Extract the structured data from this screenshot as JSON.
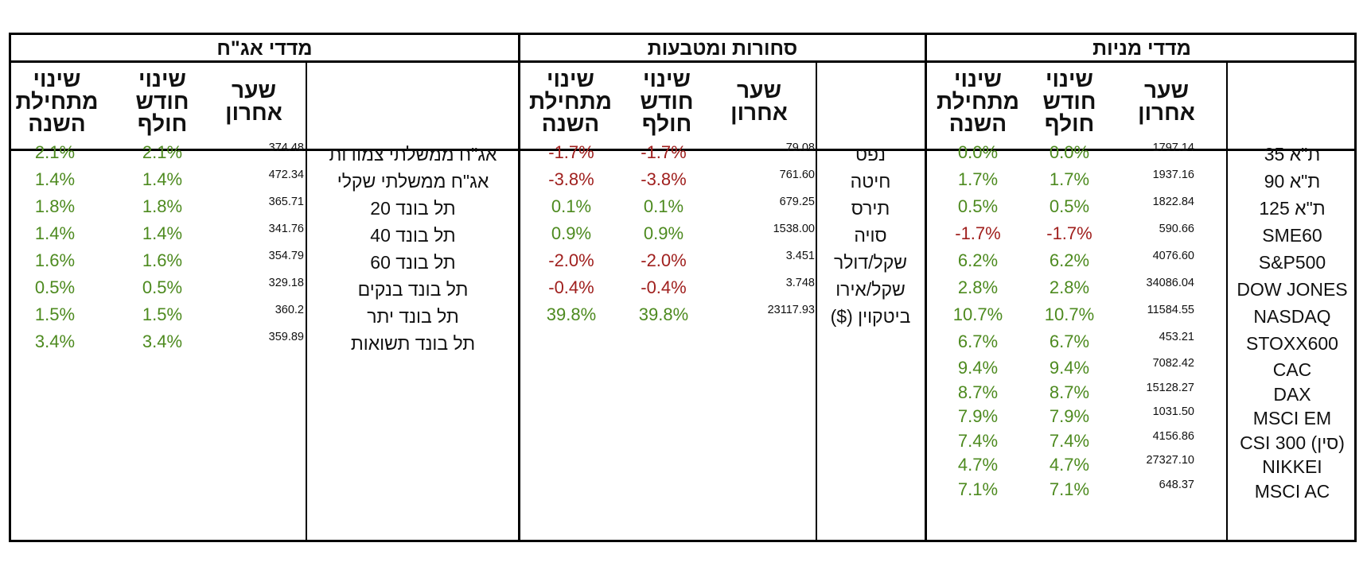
{
  "colors": {
    "positive": "#4d8a1f",
    "negative": "#a0201e"
  },
  "sections": {
    "stocks": {
      "title": "מדדי מניות"
    },
    "commodities": {
      "title": "סחורות ומטבעות"
    },
    "bonds": {
      "title": "מדדי אג\"ח"
    }
  },
  "headers": {
    "last": "שער אחרון",
    "month": "שינוי חודש חולף",
    "ytd": "שינוי מתחילת השנה"
  },
  "stocks": [
    {
      "name": "ת\"א 35",
      "last": "1797.14",
      "month": "0.0%",
      "ytd": "0.0%",
      "sign": "pos"
    },
    {
      "name": "ת\"א 90",
      "last": "1937.16",
      "month": "1.7%",
      "ytd": "1.7%",
      "sign": "pos"
    },
    {
      "name": "ת\"א 125",
      "last": "1822.84",
      "month": "0.5%",
      "ytd": "0.5%",
      "sign": "pos"
    },
    {
      "name": "SME60",
      "last": "590.66",
      "month": "-1.7%",
      "ytd": "-1.7%",
      "sign": "neg"
    },
    {
      "name": "S&P500",
      "last": "4076.60",
      "month": "6.2%",
      "ytd": "6.2%",
      "sign": "pos"
    },
    {
      "name": "DOW JONES",
      "last": "34086.04",
      "month": "2.8%",
      "ytd": "2.8%",
      "sign": "pos"
    },
    {
      "name": "NASDAQ",
      "last": "11584.55",
      "month": "10.7%",
      "ytd": "10.7%",
      "sign": "pos"
    },
    {
      "name": "STOXX600",
      "last": "453.21",
      "month": "6.7%",
      "ytd": "6.7%",
      "sign": "pos"
    },
    {
      "name": "CAC",
      "last": "7082.42",
      "month": "9.4%",
      "ytd": "9.4%",
      "sign": "pos"
    },
    {
      "name": "DAX",
      "last": "15128.27",
      "month": "8.7%",
      "ytd": "8.7%",
      "sign": "pos"
    },
    {
      "name": "MSCI EM",
      "last": "1031.50",
      "month": "7.9%",
      "ytd": "7.9%",
      "sign": "pos"
    },
    {
      "name": "CSI 300 (סין)",
      "last": "4156.86",
      "month": "7.4%",
      "ytd": "7.4%",
      "sign": "pos"
    },
    {
      "name": "NIKKEI",
      "last": "27327.10",
      "month": "4.7%",
      "ytd": "4.7%",
      "sign": "pos"
    },
    {
      "name": "MSCI AC",
      "last": "648.37",
      "month": "7.1%",
      "ytd": "7.1%",
      "sign": "pos"
    }
  ],
  "commodities": [
    {
      "name": "נפט",
      "last": "79.08",
      "month": "-1.7%",
      "ytd": "-1.7%",
      "sign": "neg"
    },
    {
      "name": "חיטה",
      "last": "761.60",
      "month": "-3.8%",
      "ytd": "-3.8%",
      "sign": "neg"
    },
    {
      "name": "תירס",
      "last": "679.25",
      "month": "0.1%",
      "ytd": "0.1%",
      "sign": "pos"
    },
    {
      "name": "סויה",
      "last": "1538.00",
      "month": "0.9%",
      "ytd": "0.9%",
      "sign": "pos"
    },
    {
      "name": "שקל/דולר",
      "last": "3.451",
      "month": "-2.0%",
      "ytd": "-2.0%",
      "sign": "neg"
    },
    {
      "name": "שקל/אירו",
      "last": "3.748",
      "month": "-0.4%",
      "ytd": "-0.4%",
      "sign": "neg"
    },
    {
      "name": "ביטקוין ($)",
      "last": "23117.93",
      "month": "39.8%",
      "ytd": "39.8%",
      "sign": "pos"
    }
  ],
  "bonds": [
    {
      "name": "אג\"ח ממשלתי צמודות",
      "last": "374.48",
      "month": "2.1%",
      "ytd": "2.1%",
      "sign": "pos"
    },
    {
      "name": "אג\"ח ממשלתי שקלי",
      "last": "472.34",
      "month": "1.4%",
      "ytd": "1.4%",
      "sign": "pos"
    },
    {
      "name": "תל בונד 20",
      "last": "365.71",
      "month": "1.8%",
      "ytd": "1.8%",
      "sign": "pos"
    },
    {
      "name": "תל בונד 40",
      "last": "341.76",
      "month": "1.4%",
      "ytd": "1.4%",
      "sign": "pos"
    },
    {
      "name": "תל בונד 60",
      "last": "354.79",
      "month": "1.6%",
      "ytd": "1.6%",
      "sign": "pos"
    },
    {
      "name": "תל בונד בנקים",
      "last": "329.18",
      "month": "0.5%",
      "ytd": "0.5%",
      "sign": "pos"
    },
    {
      "name": "תל בונד יתר",
      "last": "360.2",
      "month": "1.5%",
      "ytd": "1.5%",
      "sign": "pos"
    },
    {
      "name": "תל בונד תשואות",
      "last": "359.89",
      "month": "3.4%",
      "ytd": "3.4%",
      "sign": "pos"
    }
  ]
}
